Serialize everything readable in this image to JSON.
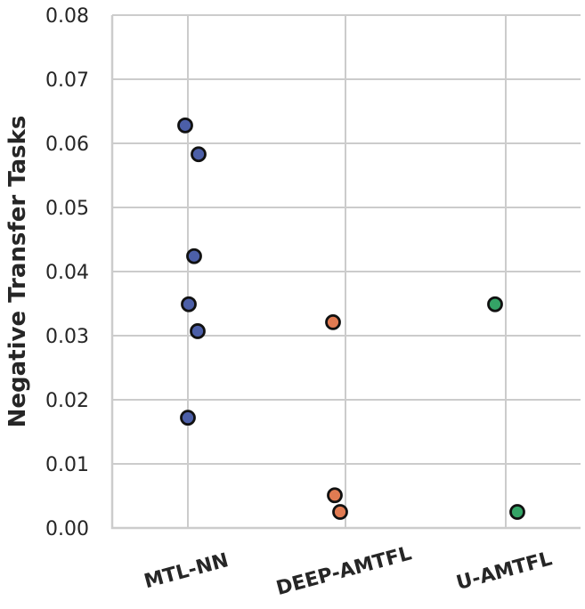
{
  "chart_data": {
    "type": "scatter",
    "title": "",
    "xlabel": "",
    "ylabel": "Negative Transfer Tasks",
    "categories": [
      "MTL-NN",
      "DEEP-AMTFL",
      "U-AMTFL"
    ],
    "ylim": [
      0.0,
      0.08
    ],
    "yticks": [
      "0.00",
      "0.01",
      "0.02",
      "0.03",
      "0.04",
      "0.05",
      "0.06",
      "0.07",
      "0.08"
    ],
    "grid": true,
    "series": [
      {
        "category": "MTL-NN",
        "color": "#4c5fa8",
        "points": [
          0.0628,
          0.0583,
          0.0424,
          0.0349,
          0.0307,
          0.0172
        ]
      },
      {
        "category": "DEEP-AMTFL",
        "color": "#e17b52",
        "points": [
          0.0321,
          0.0051,
          0.0025
        ]
      },
      {
        "category": "U-AMTFL",
        "color": "#34a466",
        "points": [
          0.0349,
          0.0025
        ]
      }
    ]
  }
}
